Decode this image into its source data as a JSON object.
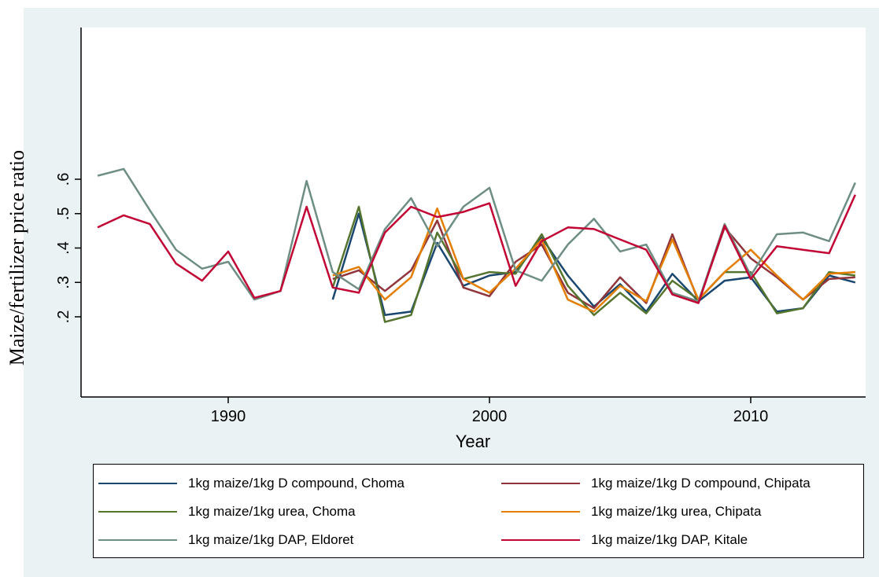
{
  "chart_data": {
    "type": "line",
    "title": "",
    "xlabel": "Year",
    "ylabel": "Maize/fertilizer price ratio",
    "xlim": [
      1985,
      2014.5
    ],
    "ylim": [
      0.0,
      0.9
    ],
    "x_ticks": [
      1990,
      2000,
      2010
    ],
    "y_ticks": [
      0.2,
      0.3,
      0.4,
      0.5,
      0.6
    ],
    "x_tick_labels": [
      "1990",
      "2000",
      "2010"
    ],
    "y_tick_labels": [
      ".2",
      ".3",
      ".4",
      ".5",
      ".6"
    ],
    "grid": false,
    "legend_position": "bottom",
    "series": [
      {
        "name": "1kg maize/1kg D compound, Choma",
        "color": "#1a476f",
        "x": [
          1994,
          1995,
          1996,
          1997,
          1998,
          1999,
          2000,
          2001,
          2002,
          2003,
          2004,
          2005,
          2006,
          2007,
          2008,
          2009,
          2010,
          2011,
          2012,
          2013,
          2014
        ],
        "y": [
          0.25,
          0.5,
          0.205,
          0.215,
          0.415,
          0.29,
          0.32,
          0.33,
          0.43,
          0.32,
          0.23,
          0.295,
          0.215,
          0.325,
          0.245,
          0.305,
          0.315,
          0.215,
          0.225,
          0.32,
          0.3
        ]
      },
      {
        "name": "1kg maize/1kg D compound, Chipata",
        "color": "#90353b",
        "x": [
          1994,
          1995,
          1996,
          1997,
          1998,
          1999,
          2000,
          2001,
          2002,
          2003,
          2004,
          2005,
          2006,
          2007,
          2008,
          2009,
          2010,
          2011,
          2012,
          2013,
          2014
        ],
        "y": [
          0.31,
          0.335,
          0.275,
          0.335,
          0.48,
          0.285,
          0.26,
          0.36,
          0.41,
          0.27,
          0.225,
          0.315,
          0.24,
          0.44,
          0.245,
          0.46,
          0.37,
          0.315,
          0.25,
          0.31,
          0.315
        ]
      },
      {
        "name": "1kg maize/1kg urea, Choma",
        "color": "#55752f",
        "x": [
          1994,
          1995,
          1996,
          1997,
          1998,
          1999,
          2000,
          2001,
          2002,
          2003,
          2004,
          2005,
          2006,
          2007,
          2008,
          2009,
          2010,
          2011,
          2012,
          2013,
          2014
        ],
        "y": [
          0.285,
          0.52,
          0.185,
          0.205,
          0.445,
          0.31,
          0.33,
          0.325,
          0.44,
          0.29,
          0.205,
          0.27,
          0.21,
          0.305,
          0.25,
          0.33,
          0.33,
          0.21,
          0.225,
          0.33,
          0.32
        ]
      },
      {
        "name": "1kg maize/1kg urea, Chipata",
        "color": "#e37e00",
        "x": [
          1994,
          1995,
          1996,
          1997,
          1998,
          1999,
          2000,
          2001,
          2002,
          2003,
          2004,
          2005,
          2006,
          2007,
          2008,
          2009,
          2010,
          2011,
          2012,
          2013,
          2014
        ],
        "y": [
          0.32,
          0.345,
          0.25,
          0.315,
          0.515,
          0.31,
          0.27,
          0.34,
          0.425,
          0.25,
          0.215,
          0.29,
          0.245,
          0.425,
          0.25,
          0.33,
          0.395,
          0.32,
          0.25,
          0.325,
          0.33
        ]
      },
      {
        "name": "1kg maize/1kg DAP, Eldoret",
        "color": "#6e8e84",
        "x": [
          1985,
          1986,
          1987,
          1988,
          1989,
          1990,
          1991,
          1992,
          1993,
          1994,
          1995,
          1996,
          1997,
          1998,
          1999,
          2000,
          2001,
          2002,
          2003,
          2004,
          2005,
          2006,
          2007,
          2008,
          2009,
          2010,
          2011,
          2012,
          2013,
          2014
        ],
        "y": [
          0.61,
          0.63,
          0.51,
          0.395,
          0.34,
          0.36,
          0.25,
          0.275,
          0.595,
          0.33,
          0.28,
          0.455,
          0.545,
          0.405,
          0.52,
          0.575,
          0.335,
          0.305,
          0.41,
          0.485,
          0.39,
          0.41,
          0.27,
          0.245,
          0.47,
          0.32,
          0.44,
          0.445,
          0.42,
          0.59
        ]
      },
      {
        "name": "1kg maize/1kg DAP, Kitale",
        "color": "#c10534",
        "x": [
          1985,
          1986,
          1987,
          1988,
          1989,
          1990,
          1991,
          1992,
          1993,
          1994,
          1995,
          1996,
          1997,
          1998,
          1999,
          2000,
          2001,
          2002,
          2003,
          2004,
          2005,
          2006,
          2007,
          2008,
          2009,
          2010,
          2011,
          2012,
          2013,
          2014
        ],
        "y": [
          0.46,
          0.495,
          0.47,
          0.355,
          0.305,
          0.39,
          0.255,
          0.275,
          0.52,
          0.285,
          0.27,
          0.445,
          0.52,
          0.49,
          0.505,
          0.53,
          0.29,
          0.42,
          0.46,
          0.455,
          0.425,
          0.395,
          0.265,
          0.24,
          0.465,
          0.31,
          0.405,
          0.395,
          0.385,
          0.555
        ]
      }
    ]
  }
}
